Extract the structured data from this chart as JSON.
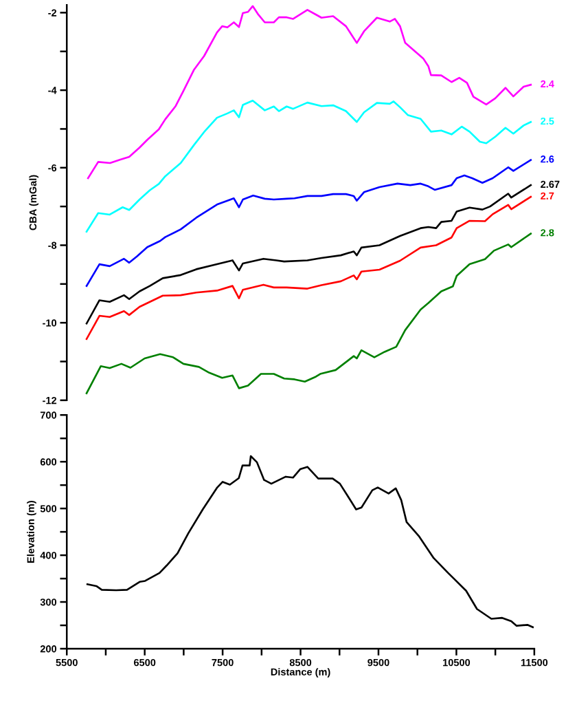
{
  "chart_data": [
    {
      "type": "line",
      "ylabel": "CBA (mGal)",
      "xlim": [
        5500,
        11500
      ],
      "ylim": [
        -12,
        -1.8
      ],
      "tick_labels": "y",
      "grid": false,
      "legend": false,
      "marker": "none",
      "line_style": "solid",
      "yticks": [
        -12,
        {
          "value": -11,
          "label": null
        },
        -10,
        {
          "value": -9,
          "label": null
        },
        -8,
        {
          "value": -7,
          "label": null
        },
        -6,
        {
          "value": -5,
          "label": null
        },
        -4,
        {
          "value": -3,
          "label": null
        },
        -2
      ],
      "series": [
        {
          "name": "2.4",
          "color": "#ff00ff",
          "x": [
            5773,
            5903,
            6055,
            6187,
            6301,
            6434,
            6533,
            6681,
            6764,
            6897,
            6997,
            7130,
            7262,
            7428,
            7494,
            7561,
            7644,
            7710,
            7760,
            7826,
            7886,
            7958,
            8041,
            8157,
            8222,
            8322,
            8405,
            8588,
            8698,
            8769,
            8918,
            9083,
            9222,
            9315,
            9480,
            9645,
            9711,
            9777,
            9843,
            9975,
            10074,
            10140,
            10174,
            10306,
            10438,
            10537,
            10636,
            10718,
            10883,
            10999,
            11130,
            11231,
            11363,
            11455
          ],
          "values": [
            -6.27,
            -5.85,
            -5.88,
            -5.79,
            -5.72,
            -5.48,
            -5.28,
            -5.01,
            -4.75,
            -4.41,
            -4.02,
            -3.48,
            -3.12,
            -2.51,
            -2.35,
            -2.38,
            -2.25,
            -2.37,
            -2.01,
            -1.98,
            -1.83,
            -2.05,
            -2.25,
            -2.25,
            -2.12,
            -2.12,
            -2.16,
            -1.93,
            -2.05,
            -2.13,
            -2.09,
            -2.35,
            -2.78,
            -2.48,
            -2.13,
            -2.23,
            -2.16,
            -2.35,
            -2.78,
            -3.01,
            -3.18,
            -3.38,
            -3.61,
            -3.62,
            -3.79,
            -3.68,
            -3.81,
            -4.17,
            -4.37,
            -4.21,
            -3.94,
            -4.16,
            -3.91,
            -3.86
          ]
        },
        {
          "name": "2.5",
          "color": "#00ffff",
          "x": [
            5754,
            5903,
            6051,
            6217,
            6301,
            6434,
            6566,
            6681,
            6764,
            6962,
            7130,
            7262,
            7428,
            7561,
            7644,
            7710,
            7760,
            7886,
            8041,
            8157,
            8222,
            8322,
            8405,
            8588,
            8769,
            8918,
            9083,
            9222,
            9315,
            9480,
            9645,
            9694,
            9777,
            9876,
            10041,
            10174,
            10306,
            10438,
            10570,
            10669,
            10801,
            10883,
            10999,
            11130,
            11231,
            11363,
            11455
          ],
          "values": [
            -7.65,
            -7.17,
            -7.21,
            -7.02,
            -7.09,
            -6.82,
            -6.58,
            -6.42,
            -6.22,
            -5.88,
            -5.42,
            -5.08,
            -4.71,
            -4.6,
            -4.52,
            -4.7,
            -4.38,
            -4.27,
            -4.52,
            -4.42,
            -4.54,
            -4.42,
            -4.48,
            -4.32,
            -4.41,
            -4.39,
            -4.54,
            -4.82,
            -4.57,
            -4.33,
            -4.35,
            -4.29,
            -4.44,
            -4.64,
            -4.74,
            -5.07,
            -5.04,
            -5.14,
            -4.94,
            -5.07,
            -5.33,
            -5.37,
            -5.2,
            -4.97,
            -5.12,
            -4.91,
            -4.82
          ]
        },
        {
          "name": "2.6",
          "color": "#0000ff",
          "x": [
            5754,
            5919,
            6051,
            6234,
            6301,
            6400,
            6533,
            6698,
            6764,
            6962,
            7162,
            7295,
            7428,
            7561,
            7644,
            7710,
            7760,
            7892,
            8041,
            8157,
            8322,
            8422,
            8588,
            8769,
            8918,
            9083,
            9183,
            9222,
            9315,
            9513,
            9744,
            9909,
            10041,
            10140,
            10222,
            10438,
            10504,
            10603,
            10702,
            10834,
            10966,
            11165,
            11231,
            11455
          ],
          "values": [
            -9.05,
            -8.49,
            -8.54,
            -8.35,
            -8.45,
            -8.29,
            -8.05,
            -7.89,
            -7.79,
            -7.59,
            -7.29,
            -7.12,
            -6.95,
            -6.85,
            -6.79,
            -7.02,
            -6.82,
            -6.72,
            -6.8,
            -6.82,
            -6.8,
            -6.79,
            -6.73,
            -6.73,
            -6.68,
            -6.68,
            -6.73,
            -6.85,
            -6.63,
            -6.5,
            -6.41,
            -6.45,
            -6.41,
            -6.48,
            -6.57,
            -6.45,
            -6.27,
            -6.2,
            -6.27,
            -6.39,
            -6.27,
            -5.99,
            -6.08,
            -5.8
          ]
        },
        {
          "name": "2.67",
          "color": "#000000",
          "x": [
            5754,
            5919,
            6051,
            6234,
            6301,
            6434,
            6566,
            6732,
            6962,
            7162,
            7428,
            7627,
            7710,
            7760,
            8024,
            8190,
            8290,
            8588,
            8769,
            9017,
            9183,
            9222,
            9281,
            9513,
            9777,
            10041,
            10140,
            10240,
            10306,
            10438,
            10504,
            10669,
            10834,
            10933,
            11165,
            11204,
            11455
          ],
          "values": [
            -10.02,
            -9.42,
            -9.46,
            -9.29,
            -9.39,
            -9.19,
            -9.05,
            -8.85,
            -8.77,
            -8.62,
            -8.49,
            -8.39,
            -8.65,
            -8.47,
            -8.35,
            -8.39,
            -8.42,
            -8.39,
            -8.33,
            -8.26,
            -8.16,
            -8.26,
            -8.06,
            -8.0,
            -7.76,
            -7.56,
            -7.53,
            -7.56,
            -7.4,
            -7.37,
            -7.13,
            -7.03,
            -7.08,
            -7.0,
            -6.67,
            -6.77,
            -6.45
          ]
        },
        {
          "name": "2.7",
          "color": "#ff0000",
          "x": [
            5754,
            5919,
            6051,
            6234,
            6301,
            6434,
            6599,
            6732,
            6962,
            7162,
            7428,
            7627,
            7710,
            7760,
            8024,
            8157,
            8322,
            8588,
            8769,
            9017,
            9183,
            9222,
            9281,
            9513,
            9777,
            10041,
            10240,
            10438,
            10504,
            10669,
            10867,
            10966,
            11165,
            11204,
            11455
          ],
          "values": [
            -10.42,
            -9.82,
            -9.85,
            -9.7,
            -9.8,
            -9.59,
            -9.43,
            -9.3,
            -9.29,
            -9.22,
            -9.17,
            -9.05,
            -9.37,
            -9.15,
            -9.02,
            -9.09,
            -9.09,
            -9.12,
            -9.03,
            -8.93,
            -8.78,
            -8.88,
            -8.68,
            -8.63,
            -8.4,
            -8.06,
            -8.0,
            -7.8,
            -7.56,
            -7.37,
            -7.38,
            -7.2,
            -6.96,
            -7.07,
            -6.75
          ]
        },
        {
          "name": "2.8",
          "color": "#008000",
          "x": [
            5754,
            5936,
            6051,
            6201,
            6317,
            6499,
            6698,
            6864,
            6997,
            7196,
            7328,
            7494,
            7627,
            7710,
            7826,
            7992,
            8157,
            8290,
            8422,
            8555,
            8698,
            8753,
            8951,
            9183,
            9222,
            9281,
            9447,
            9579,
            9728,
            9843,
            10041,
            10140,
            10306,
            10455,
            10504,
            10669,
            10867,
            10982,
            11165,
            11204,
            11455
          ],
          "values": [
            -11.82,
            -11.12,
            -11.17,
            -11.06,
            -11.16,
            -10.92,
            -10.81,
            -10.89,
            -11.06,
            -11.14,
            -11.29,
            -11.42,
            -11.36,
            -11.69,
            -11.62,
            -11.32,
            -11.32,
            -11.44,
            -11.46,
            -11.52,
            -11.39,
            -11.32,
            -11.22,
            -10.86,
            -10.92,
            -10.71,
            -10.89,
            -10.75,
            -10.62,
            -10.19,
            -9.66,
            -9.49,
            -9.19,
            -9.06,
            -8.79,
            -8.49,
            -8.36,
            -8.14,
            -7.98,
            -8.05,
            -7.7
          ]
        }
      ]
    },
    {
      "type": "line",
      "xlabel": "Distance (m)",
      "ylabel": "Elevation (m)",
      "xlim": [
        5500,
        11500
      ],
      "ylim": [
        200,
        700
      ],
      "grid": false,
      "legend": false,
      "marker": "none",
      "line_style": "solid",
      "xticks": [
        5500,
        {
          "value": 6000,
          "label": null
        },
        6500,
        {
          "value": 7000,
          "label": null
        },
        7500,
        {
          "value": 8000,
          "label": null
        },
        8500,
        {
          "value": 9000,
          "label": null
        },
        9500,
        {
          "value": 10000,
          "label": null
        },
        10500,
        {
          "value": 11000,
          "label": null
        },
        11500
      ],
      "yticks": [
        200,
        {
          "value": 250,
          "label": null
        },
        300,
        {
          "value": 350,
          "label": null
        },
        400,
        {
          "value": 450,
          "label": null
        },
        500,
        {
          "value": 550,
          "label": null
        },
        600,
        {
          "value": 650,
          "label": null
        },
        700
      ],
      "series": [
        {
          "color": "#000000",
          "x": [
            5764,
            5880,
            5949,
            6134,
            6273,
            6435,
            6505,
            6690,
            6782,
            6921,
            7060,
            7245,
            7431,
            7500,
            7593,
            7708,
            7755,
            7847,
            7861,
            7940,
            8032,
            8125,
            8310,
            8403,
            8495,
            8588,
            8727,
            8912,
            9005,
            9097,
            9213,
            9282,
            9421,
            9491,
            9630,
            9722,
            9792,
            9861,
            10023,
            10208,
            10394,
            10486,
            10625,
            10764,
            10949,
            11088,
            11204,
            11273,
            11412,
            11481
          ],
          "values": [
            338,
            334,
            326,
            325,
            326,
            343,
            345,
            362,
            378,
            404,
            447,
            498,
            545,
            557,
            551,
            565,
            592,
            592,
            612,
            599,
            561,
            553,
            568,
            566,
            584,
            589,
            564,
            564,
            553,
            529,
            498,
            502,
            539,
            545,
            532,
            543,
            518,
            471,
            440,
            394,
            362,
            347,
            324,
            285,
            264,
            266,
            259,
            249,
            251,
            246
          ]
        }
      ]
    }
  ]
}
